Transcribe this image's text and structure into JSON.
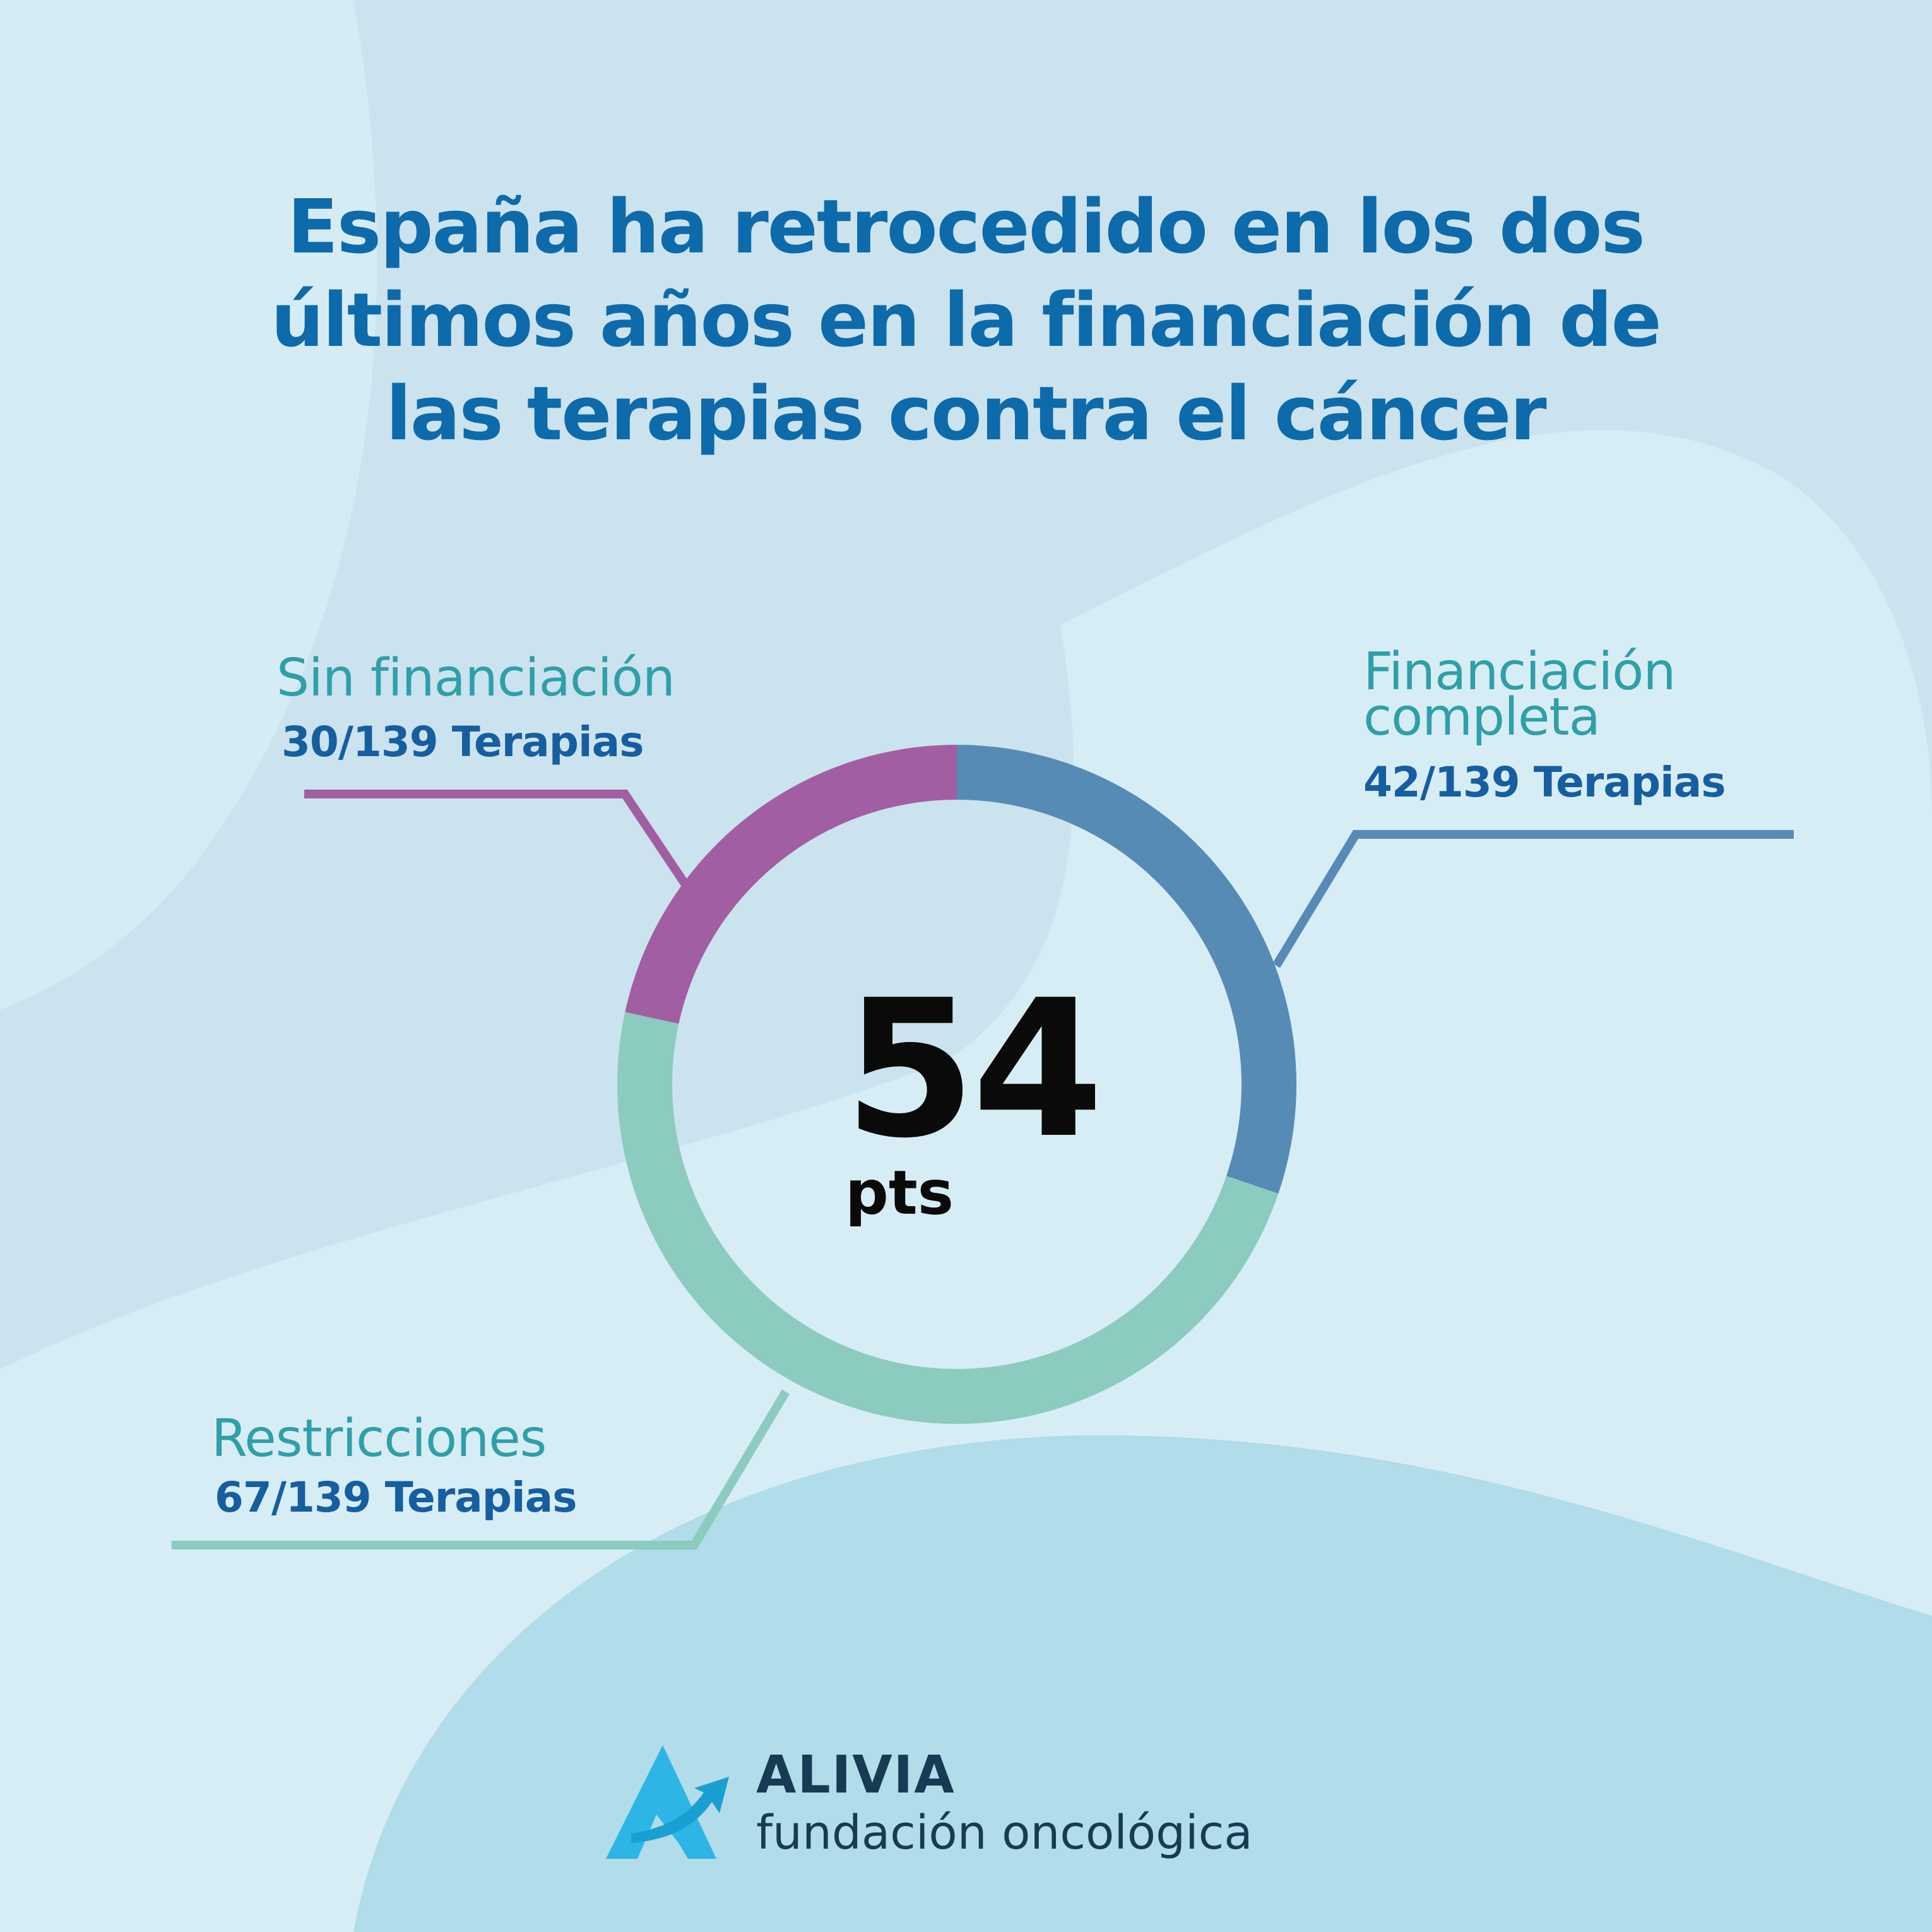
{
  "title_lines": [
    "España ha retrocedido en los dos",
    "últimos años en la financiación de",
    "las terapias contra el cáncer"
  ],
  "colors": {
    "title": "#0d6aab",
    "label_name": "#2f9fa8",
    "label_count": "#165ea0",
    "brand_text": "#173b53",
    "logo": "#2db5e6"
  },
  "chart_data": {
    "type": "pie",
    "variant": "donut",
    "total": 139,
    "unit": "Terapias",
    "center_value": "54",
    "center_unit": "pts",
    "slices": [
      {
        "label_lines": [
          "Financiación",
          "completa"
        ],
        "count_label": "42/139 Terapias",
        "value": 42,
        "color": "#568bb6"
      },
      {
        "label_lines": [
          "Restricciones"
        ],
        "count_label": "67/139 Terapias",
        "value": 67,
        "color": "#8bcbc0"
      },
      {
        "label_lines": [
          "Sin financiación"
        ],
        "count_label": "30/139 Terapias",
        "value": 30,
        "color": "#a15ea2"
      }
    ]
  },
  "brand": {
    "name": "ALIVIA",
    "subtitle": "fundación oncológica"
  }
}
